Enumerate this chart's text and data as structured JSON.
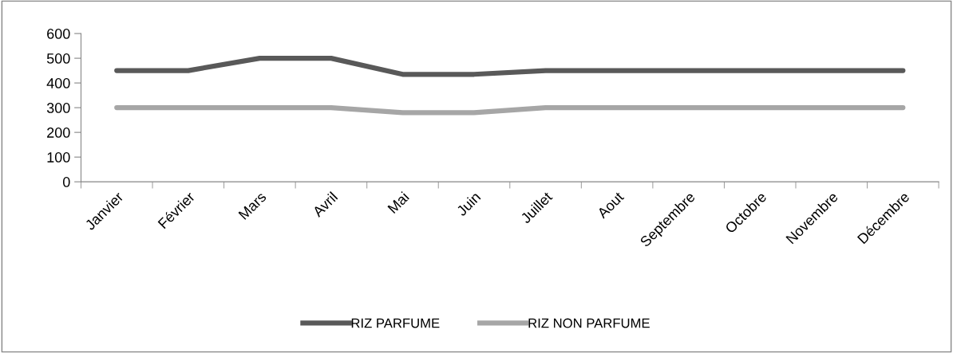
{
  "chart_data": {
    "type": "line",
    "categories": [
      "Janvier",
      "Février",
      "Mars",
      "Avril",
      "Mai",
      "Juin",
      "Juillet",
      "Aout",
      "Septembre",
      "Octobre",
      "Novembre",
      "Décembre"
    ],
    "series": [
      {
        "name": "RIZ PARFUME",
        "color": "#595959",
        "values": [
          450,
          450,
          500,
          500,
          435,
          435,
          450,
          450,
          450,
          450,
          450,
          450
        ]
      },
      {
        "name": "RIZ NON PARFUME",
        "color": "#a6a6a6",
        "values": [
          300,
          300,
          300,
          300,
          280,
          280,
          300,
          300,
          300,
          300,
          300,
          300
        ]
      }
    ],
    "ylim": [
      0,
      600
    ],
    "yticks": [
      0,
      100,
      200,
      300,
      400,
      500,
      600
    ],
    "grid": false,
    "legend": "bottom",
    "marker": "none",
    "line_style": "solid"
  }
}
